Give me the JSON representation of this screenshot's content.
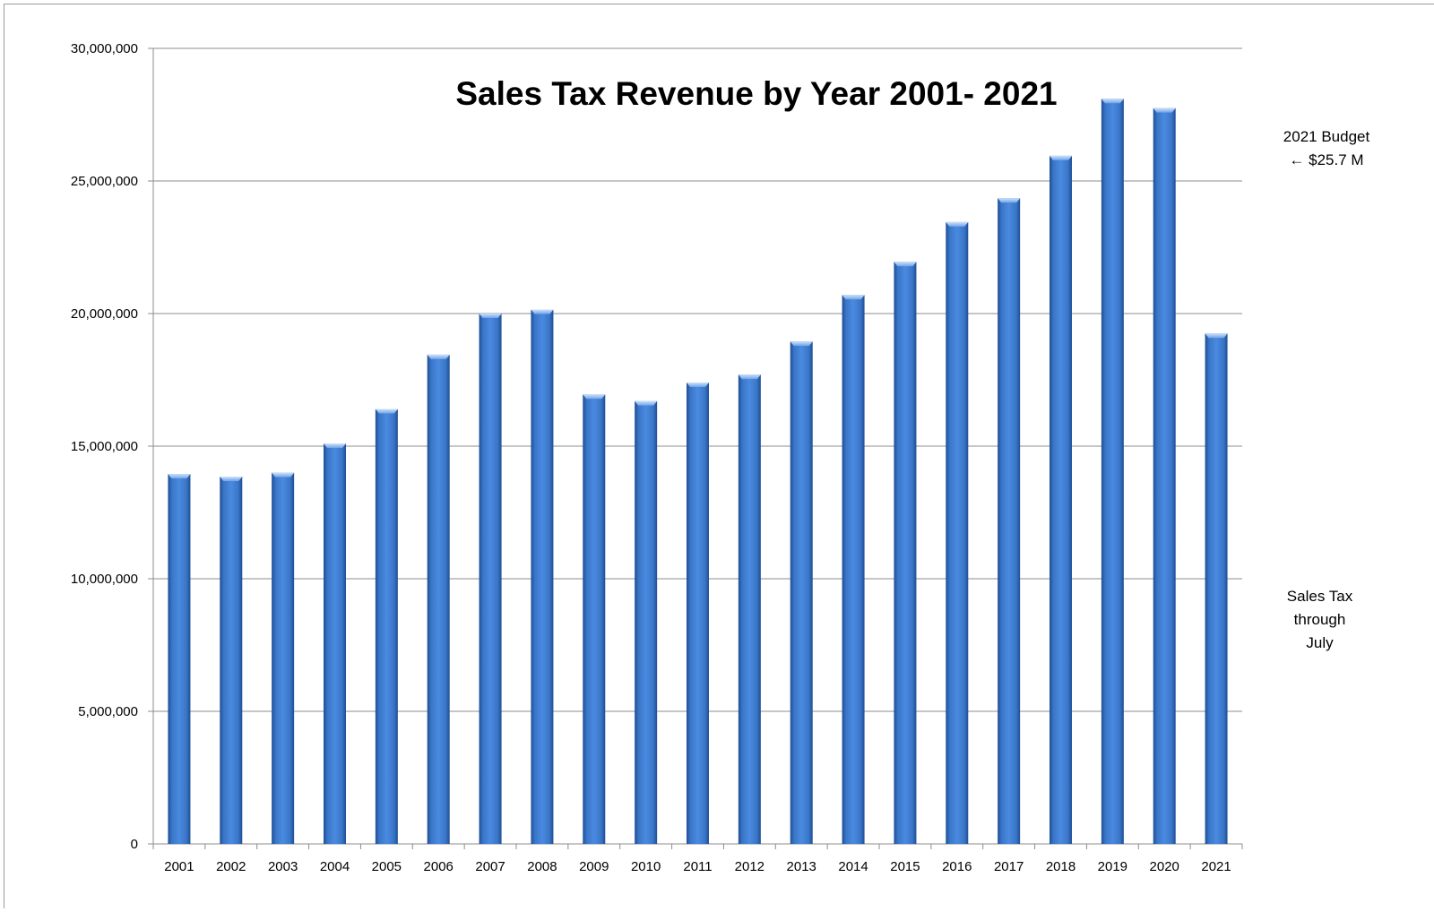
{
  "chart_data": {
    "type": "bar",
    "title": "Sales Tax Revenue by Year 2001- 2021",
    "xlabel": "",
    "ylabel": "",
    "ylim": [
      0,
      30000000
    ],
    "yticks": [
      0,
      5000000,
      10000000,
      15000000,
      20000000,
      25000000,
      30000000
    ],
    "ytick_labels": [
      "0",
      "5,000,000",
      "10,000,000",
      "15,000,000",
      "20,000,000",
      "25,000,000",
      "30,000,000"
    ],
    "grid": true,
    "legend": "none",
    "bar_color": "#3d7ed6",
    "categories": [
      "2001",
      "2002",
      "2003",
      "2004",
      "2005",
      "2006",
      "2007",
      "2008",
      "2009",
      "2010",
      "2011",
      "2012",
      "2013",
      "2014",
      "2015",
      "2016",
      "2017",
      "2018",
      "2019",
      "2020",
      "2021"
    ],
    "values": [
      13950000,
      13850000,
      14000000,
      15100000,
      16400000,
      18450000,
      20000000,
      20150000,
      16950000,
      16700000,
      17400000,
      17700000,
      18950000,
      20700000,
      21950000,
      23450000,
      24350000,
      25950000,
      28100000,
      27750000,
      19250000
    ]
  },
  "annotations": {
    "budget_line1": "2021 Budget",
    "budget_line2": "← $25.7 M",
    "partial_line1": "Sales Tax",
    "partial_line2": "through",
    "partial_line3": "July"
  }
}
